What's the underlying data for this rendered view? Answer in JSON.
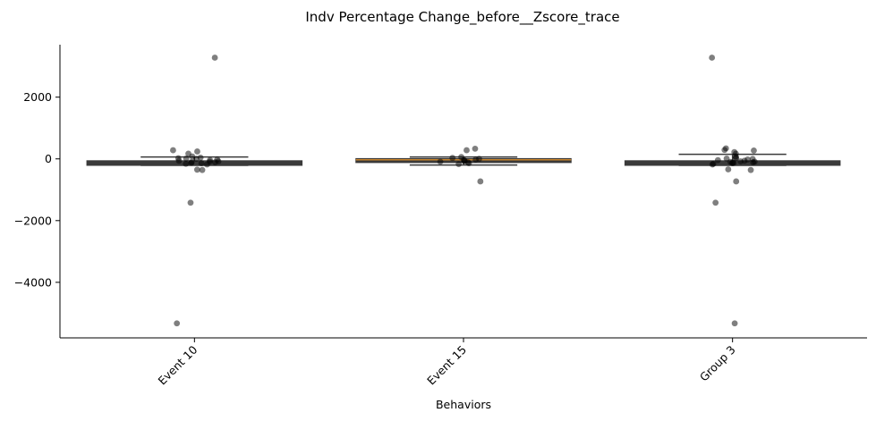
{
  "chart_data": {
    "type": "box",
    "title": "Indv Percentage Change_before__Zscore_trace",
    "xlabel": "Behaviors",
    "ylabel": "",
    "categories": [
      "Event 10",
      "Event 15",
      "Group 3"
    ],
    "ylim": [
      -5800,
      3700
    ],
    "yticks": [
      2000,
      0,
      -2000,
      -4000
    ],
    "ytick_labels": [
      "2000",
      "0",
      "−2000",
      "−4000"
    ],
    "boxes": [
      {
        "category": "Event 10",
        "q1": -210,
        "median": -100,
        "q3": -60,
        "whisker_low": -210,
        "whisker_high": 60,
        "face_color": "#3a3a3a",
        "median_color": "#3a3a3a"
      },
      {
        "category": "Event 15",
        "q1": -120,
        "median": -30,
        "q3": 10,
        "whisker_low": -200,
        "whisker_high": 60,
        "face_color": "#3a3a3a",
        "median_color": "#c8842c"
      },
      {
        "category": "Group 3",
        "q1": -210,
        "median": -100,
        "q3": -60,
        "whisker_low": -210,
        "whisker_high": 150,
        "face_color": "#3a3a3a",
        "median_color": "#3a3a3a"
      }
    ],
    "points": [
      {
        "category": "Event 10",
        "values": [
          3280,
          280,
          240,
          170,
          80,
          40,
          20,
          10,
          0,
          -20,
          -40,
          -60,
          -80,
          -90,
          -100,
          -110,
          -130,
          -140,
          -160,
          -180,
          -350,
          -360,
          -1420,
          -5330
        ]
      },
      {
        "category": "Event 15",
        "values": [
          330,
          280,
          60,
          30,
          0,
          -20,
          -40,
          -60,
          -70,
          -90,
          -110,
          -140,
          -170,
          -730
        ]
      },
      {
        "category": "Group 3",
        "values": [
          3280,
          340,
          290,
          270,
          220,
          170,
          80,
          40,
          20,
          10,
          0,
          -20,
          -40,
          -60,
          -80,
          -90,
          -100,
          -110,
          -120,
          -130,
          -140,
          -160,
          -180,
          -340,
          -360,
          -730,
          -1420,
          -5330
        ]
      }
    ],
    "point_color": "#000000",
    "point_alpha": 0.5,
    "grid": false,
    "legend": "none"
  }
}
